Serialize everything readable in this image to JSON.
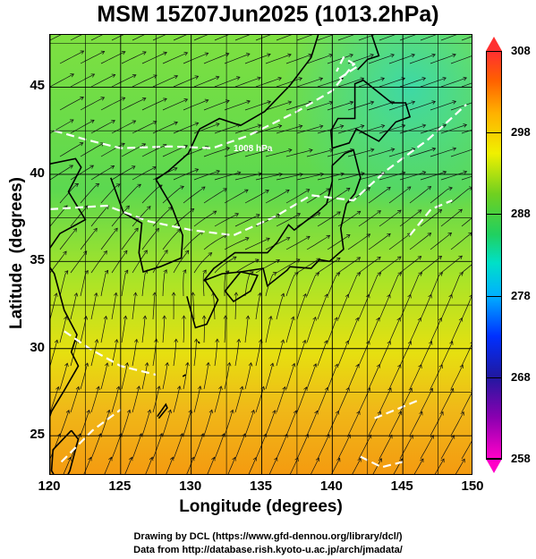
{
  "title": "MSM 15Z07Jun2025 (1013.2hPa)",
  "xlabel": "Longitude (degrees)",
  "ylabel": "Latitude  (degrees)",
  "map": {
    "lon_range": [
      120,
      150
    ],
    "lat_range": [
      22.7,
      48
    ],
    "lon_ticks": [
      "120",
      "125",
      "130",
      "135",
      "140",
      "145",
      "150"
    ],
    "lat_ticks": [
      "25",
      "30",
      "35",
      "40",
      "45"
    ],
    "contour_label": "1008 hPa"
  },
  "colorbar": {
    "min": 258,
    "max": 308,
    "ticks": [
      "308",
      "298",
      "288",
      "278",
      "268",
      "258"
    ]
  },
  "credits": {
    "line1": "Drawing by DCL (https://www.gfd-dennou.org/library/dcl/)",
    "line2": "Data from http://database.rish.kyoto-u.ac.jp/arch/jmadata/"
  }
}
